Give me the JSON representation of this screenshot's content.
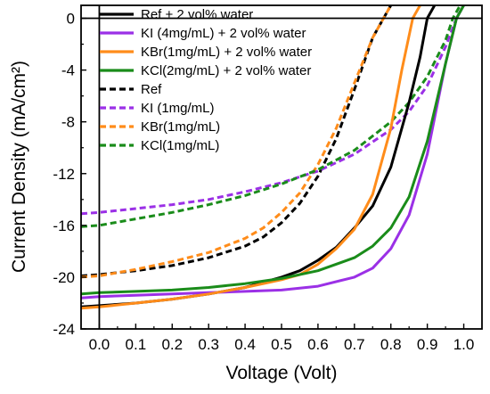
{
  "chart_data": {
    "type": "line",
    "title": "",
    "xlabel": "Voltage (Volt)",
    "ylabel": "Current Density (mA/cm²)",
    "xlim": [
      -0.05,
      1.05
    ],
    "ylim": [
      -24,
      1
    ],
    "xticks": [
      0.0,
      0.1,
      0.2,
      0.3,
      0.4,
      0.5,
      0.6,
      0.7,
      0.8,
      0.9,
      1.0
    ],
    "xtick_labels": [
      "0.0",
      "0.1",
      "0.2",
      "0.3",
      "0.4",
      "0.5",
      "0.6",
      "0.7",
      "0.8",
      "0.9",
      "1.0"
    ],
    "yticks": [
      0,
      -4,
      -8,
      -12,
      -16,
      -20,
      -24
    ],
    "ytick_labels": [
      "0",
      "-4",
      "-8",
      "-12",
      "-16",
      "-20",
      "-24"
    ],
    "grid": false,
    "legend_position": "top-left",
    "reference_lines": [
      {
        "orientation": "horizontal",
        "value": 0
      },
      {
        "orientation": "vertical",
        "value": 0
      }
    ],
    "series": [
      {
        "name": "Ref + 2 vol% water",
        "color": "#000000",
        "style": "solid",
        "x": [
          -0.05,
          0.0,
          0.1,
          0.2,
          0.3,
          0.4,
          0.5,
          0.55,
          0.6,
          0.65,
          0.7,
          0.75,
          0.8,
          0.85,
          0.88,
          0.9,
          0.92
        ],
        "y": [
          -22.3,
          -22.2,
          -22.0,
          -21.7,
          -21.3,
          -20.8,
          -20.0,
          -19.5,
          -18.7,
          -17.7,
          -16.2,
          -14.5,
          -11.5,
          -6.5,
          -3.0,
          0.0,
          1.0
        ]
      },
      {
        "name": "KI  (4mg/mL) + 2 vol% water",
        "color": "#9b30e6",
        "style": "solid",
        "x": [
          -0.05,
          0.0,
          0.1,
          0.2,
          0.3,
          0.4,
          0.5,
          0.6,
          0.7,
          0.75,
          0.8,
          0.85,
          0.9,
          0.95,
          0.98,
          1.0
        ],
        "y": [
          -21.6,
          -21.5,
          -21.4,
          -21.3,
          -21.2,
          -21.1,
          -21.0,
          -20.7,
          -20.0,
          -19.3,
          -17.8,
          -15.2,
          -10.5,
          -3.5,
          0.0,
          1.0
        ]
      },
      {
        "name": "KBr(1mg/mL) + 2 vol% water",
        "color": "#ff8c1a",
        "style": "solid",
        "x": [
          -0.05,
          0.0,
          0.1,
          0.2,
          0.3,
          0.4,
          0.5,
          0.55,
          0.6,
          0.65,
          0.7,
          0.75,
          0.8,
          0.83,
          0.86,
          0.88
        ],
        "y": [
          -22.4,
          -22.3,
          -22.0,
          -21.7,
          -21.3,
          -20.8,
          -20.2,
          -19.8,
          -19.0,
          -17.8,
          -16.3,
          -13.6,
          -8.5,
          -4.0,
          0.0,
          1.0
        ]
      },
      {
        "name": "KCl(2mg/mL) + 2 vol% water",
        "color": "#1a8c1a",
        "style": "solid",
        "x": [
          -0.05,
          0.0,
          0.1,
          0.2,
          0.3,
          0.4,
          0.5,
          0.6,
          0.7,
          0.75,
          0.8,
          0.85,
          0.9,
          0.95,
          0.98,
          1.0
        ],
        "y": [
          -21.3,
          -21.2,
          -21.1,
          -21.0,
          -20.8,
          -20.5,
          -20.1,
          -19.5,
          -18.5,
          -17.6,
          -16.2,
          -13.8,
          -9.5,
          -3.5,
          0.0,
          1.0
        ]
      },
      {
        "name": "Ref",
        "color": "#000000",
        "style": "dashed",
        "x": [
          -0.05,
          0.0,
          0.1,
          0.2,
          0.3,
          0.4,
          0.45,
          0.5,
          0.55,
          0.6,
          0.65,
          0.7,
          0.75,
          0.78,
          0.8
        ],
        "y": [
          -19.9,
          -19.8,
          -19.5,
          -19.1,
          -18.5,
          -17.6,
          -16.9,
          -15.8,
          -14.3,
          -12.2,
          -9.3,
          -5.5,
          -1.5,
          0.0,
          1.0
        ]
      },
      {
        "name": "KI  (1mg/mL)",
        "color": "#9b30e6",
        "style": "dashed",
        "x": [
          -0.05,
          0.0,
          0.1,
          0.2,
          0.3,
          0.4,
          0.5,
          0.6,
          0.7,
          0.8,
          0.85,
          0.9,
          0.95,
          0.98,
          1.0
        ],
        "y": [
          -15.1,
          -15.0,
          -14.7,
          -14.4,
          -14.0,
          -13.4,
          -12.7,
          -11.8,
          -10.5,
          -8.6,
          -7.2,
          -5.2,
          -2.2,
          0.0,
          1.0
        ]
      },
      {
        "name": "KBr(1mg/mL)",
        "color": "#ff8c1a",
        "style": "dashed",
        "x": [
          -0.05,
          0.0,
          0.1,
          0.2,
          0.3,
          0.4,
          0.45,
          0.5,
          0.55,
          0.6,
          0.65,
          0.7,
          0.75,
          0.78,
          0.8
        ],
        "y": [
          -20.0,
          -19.9,
          -19.4,
          -18.8,
          -18.1,
          -17.0,
          -16.2,
          -15.0,
          -13.5,
          -11.3,
          -8.5,
          -5.0,
          -1.5,
          0.0,
          1.0
        ]
      },
      {
        "name": "KCl(1mg/mL)",
        "color": "#1a8c1a",
        "style": "dashed",
        "x": [
          -0.05,
          0.0,
          0.1,
          0.2,
          0.3,
          0.4,
          0.5,
          0.6,
          0.7,
          0.8,
          0.85,
          0.9,
          0.95,
          0.97,
          0.99
        ],
        "y": [
          -16.1,
          -16.0,
          -15.5,
          -15.0,
          -14.4,
          -13.7,
          -12.8,
          -11.7,
          -10.2,
          -8.0,
          -6.5,
          -4.5,
          -1.7,
          0.0,
          1.0
        ]
      }
    ]
  }
}
